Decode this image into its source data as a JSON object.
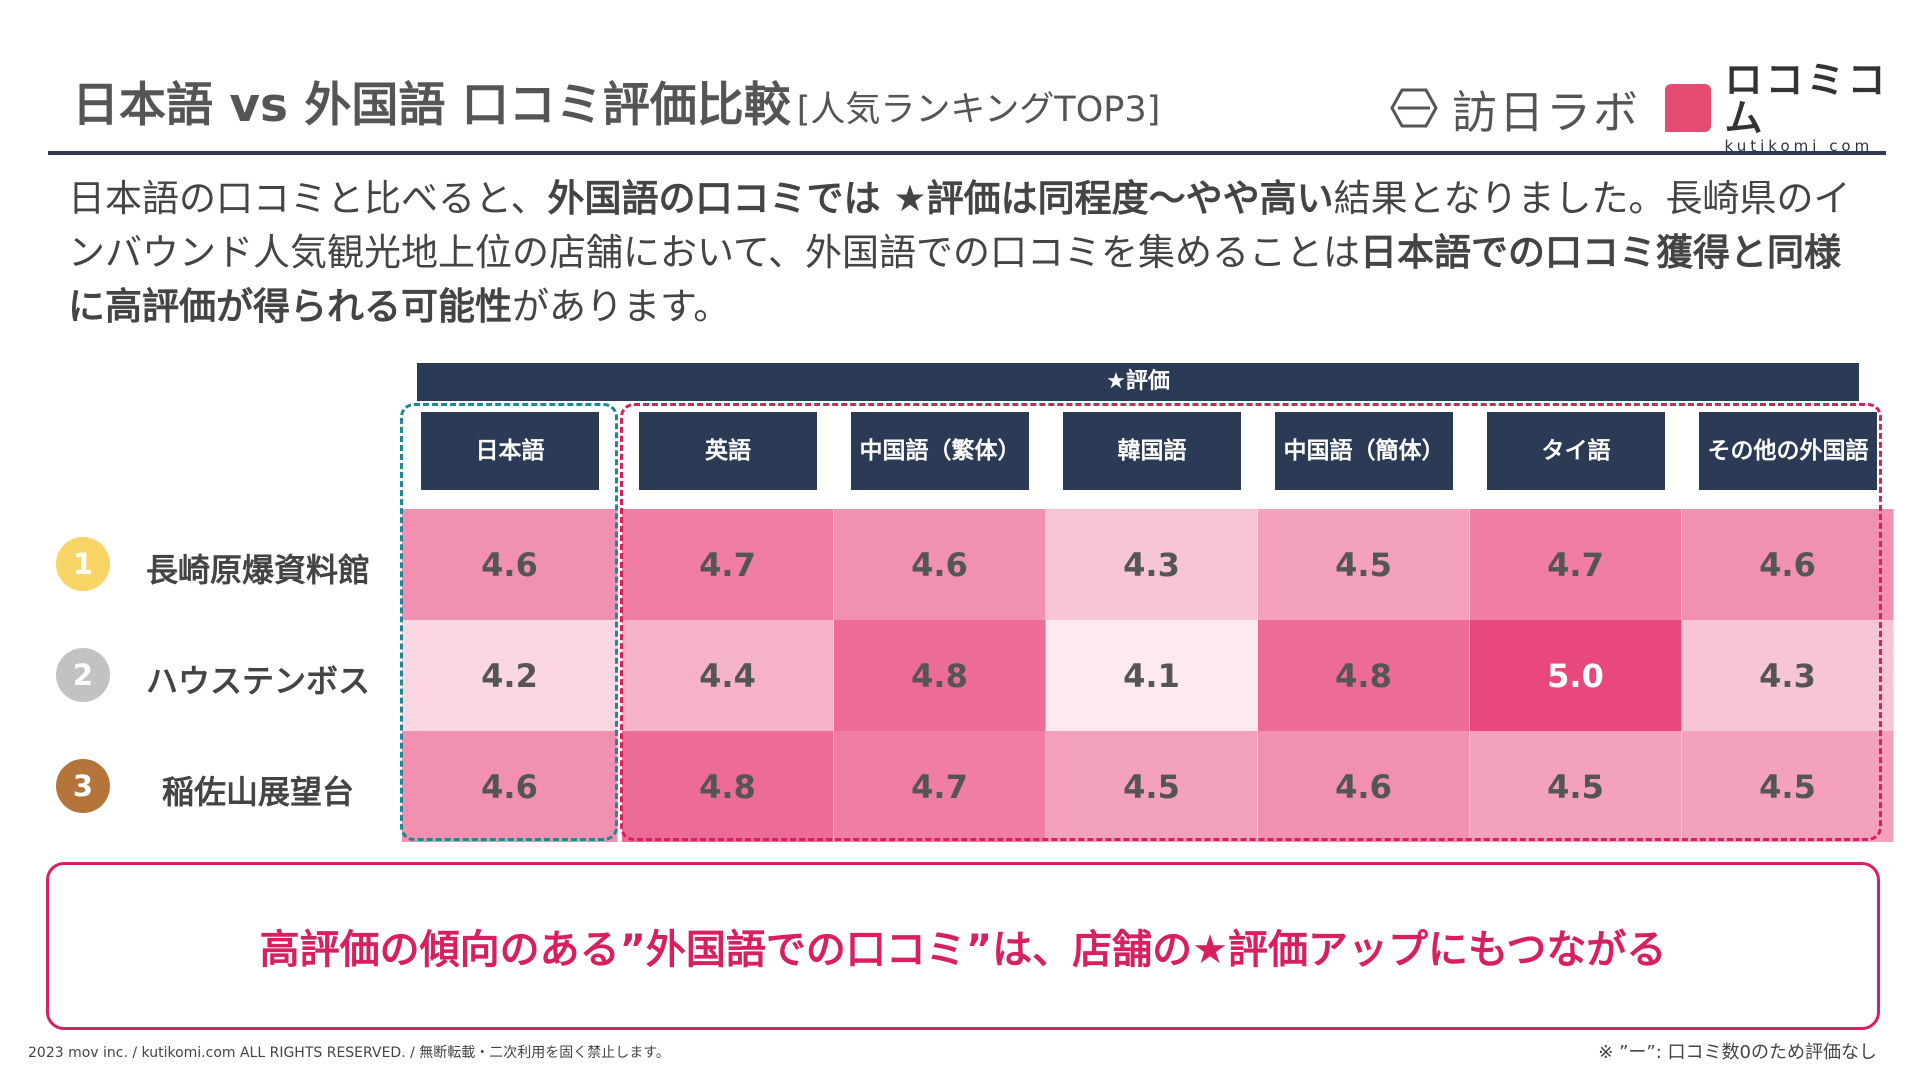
{
  "header": {
    "title": "日本語 vs 外国語 口コミ評価比較",
    "subtitle": "[人気ランキングTOP3]",
    "logo1_text": "訪日ラボ",
    "logo2_text": "ロコミコム",
    "logo2_sub": "kutikomi com"
  },
  "intro": {
    "p1": "日本語の口コミと比べると、",
    "b1": "外国語の口コミでは ★評価は同程度〜やや高い",
    "p2": "結果となりました。長崎県のインバウンド人気観光地上位の店舗において、外国語での口コミを集めることは",
    "b2": "日本語での口コミ獲得と同様に高評価が得られる可能性",
    "p3": "があります。"
  },
  "chart_data": {
    "type": "heatmap",
    "title": "★評価",
    "columns": [
      {
        "line1": "日本語",
        "line2": ""
      },
      {
        "line1": "英語",
        "line2": ""
      },
      {
        "line1": "中国語",
        "line2": "（繁体）"
      },
      {
        "line1": "韓国語",
        "line2": ""
      },
      {
        "line1": "中国語",
        "line2": "（簡体）"
      },
      {
        "line1": "タイ語",
        "line2": ""
      },
      {
        "line1": "その他の",
        "line2": "外国語"
      }
    ],
    "rows": [
      {
        "rank": "1",
        "name": "長崎原爆資料館",
        "values": [
          4.6,
          4.7,
          4.6,
          4.3,
          4.5,
          4.7,
          4.6
        ]
      },
      {
        "rank": "2",
        "name": "ハウステンボス",
        "values": [
          4.2,
          4.4,
          4.8,
          4.1,
          4.8,
          5.0,
          4.3
        ]
      },
      {
        "rank": "3",
        "name": "稲佐山展望台",
        "values": [
          4.6,
          4.8,
          4.7,
          4.5,
          4.6,
          4.5,
          4.5
        ]
      }
    ],
    "rank_colors": [
      "#f9d466",
      "#c2c2c2",
      "#b5743a"
    ],
    "color_scale": {
      "min": 4.1,
      "max": 5.0,
      "low_color": "#fde9ef",
      "high_color": "#e8487b"
    }
  },
  "conclusion": "高評価の傾向のある”外国語での口コミ”は、店舗の★評価アップにもつながる",
  "footer": "2023 mov inc. / kutikomi.com ALL RIGHTS RESERVED. / 無断転載・二次利用を固く禁止します。",
  "footnote": "※ ”ー”: 口コミ数0のため評価なし"
}
